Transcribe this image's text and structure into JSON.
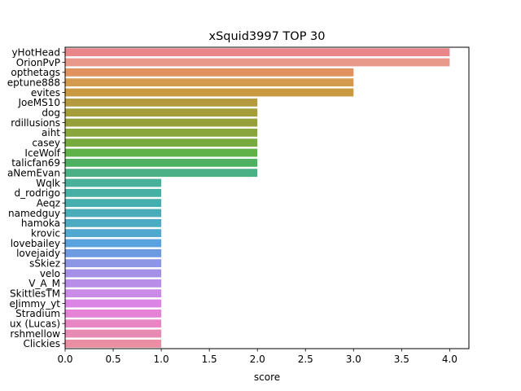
{
  "chart_data": {
    "type": "bar",
    "orientation": "horizontal",
    "title": "xSquid3997 TOP 30",
    "xlabel": "score",
    "ylabel": "",
    "xlim": [
      0,
      4.2
    ],
    "xticks": [
      "0.0",
      "0.5",
      "1.0",
      "1.5",
      "2.0",
      "2.5",
      "3.0",
      "3.5",
      "4.0"
    ],
    "grid": false,
    "categories": [
      "yHotHead",
      "OrionPvP",
      "opthetags",
      "eptune888",
      "evites",
      "JoeMS10",
      "dog",
      "rdillusions",
      "aiht",
      "casey",
      "IceWolf",
      "talicfan69",
      "aNemEvan",
      "Wqlk",
      "d_rodrigo",
      "Aeqz",
      "namedguy",
      "hamoka",
      "krovic",
      "lovebailey",
      "lovejaidy",
      "sSkiez",
      "velo",
      "V_A_M",
      "SkittlesTM",
      "eJimmy_yt",
      "Stradium",
      "ux (Lucas)",
      "rshmellow",
      "Clickies"
    ],
    "values": [
      4,
      4,
      3,
      3,
      3,
      2,
      2,
      2,
      2,
      2,
      2,
      2,
      2,
      1,
      1,
      1,
      1,
      1,
      1,
      1,
      1,
      1,
      1,
      1,
      1,
      1,
      1,
      1,
      1,
      1
    ],
    "colors": [
      "#e8868a",
      "#e8998a",
      "#e0935f",
      "#d49a4e",
      "#c99a42",
      "#b39a3e",
      "#a39d3a",
      "#96a03a",
      "#88a63c",
      "#78ab3e",
      "#5fb247",
      "#4db161",
      "#4bb184",
      "#49b09a",
      "#48afa4",
      "#47aeae",
      "#49acb8",
      "#4cabc2",
      "#50a8cf",
      "#5aa2dd",
      "#6d9be2",
      "#8c96e5",
      "#a491e7",
      "#b78de8",
      "#c98ae8",
      "#dc84e6",
      "#e582d6",
      "#e886c4",
      "#e98ab3",
      "#e98ea3"
    ]
  }
}
